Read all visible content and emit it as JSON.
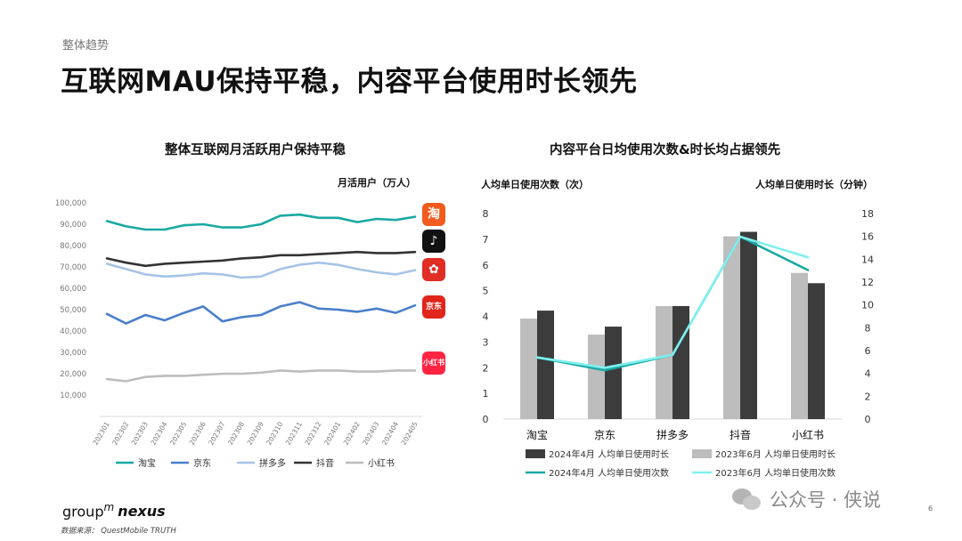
{
  "header": {
    "section": "整体趋势",
    "title": "互联网MAU保持平稳，内容平台使用时长领先"
  },
  "left_chart": {
    "title": "整体互联网月活跃用户保持平稳",
    "unit": "月活用户（万人）"
  },
  "right_chart": {
    "title": "内容平台日均使用次数&时长均占据领先",
    "left_axis_label": "人均单日使用次数（次）",
    "right_axis_label": "人均单日使用时长（分钟）"
  },
  "app_icons": [
    {
      "name": "taobao-icon",
      "glyph": "淘",
      "color": "#f35a1d"
    },
    {
      "name": "douyin-icon",
      "glyph": "♪",
      "color": "#111111"
    },
    {
      "name": "pinduoduo-icon",
      "glyph": "✿",
      "color": "#e02e24"
    },
    {
      "name": "jd-icon",
      "glyph": "京东",
      "color": "#e1251b"
    },
    {
      "name": "xiaohongshu-icon",
      "glyph": "小红书",
      "color": "#ff2442"
    }
  ],
  "footer": {
    "logo_group": "group",
    "logo_m": "m",
    "logo_nexus": "nexus",
    "source": "数据来源：  QuestMobile TRUTH",
    "page_number": "6",
    "watermark": "公众号 · 侠说"
  },
  "chart_data": [
    {
      "type": "line",
      "title": "整体互联网月活跃用户保持平稳",
      "ylabel": "月活用户（万人）",
      "ylim": [
        0,
        100000
      ],
      "yticks": [
        10000,
        20000,
        30000,
        40000,
        50000,
        60000,
        70000,
        80000,
        90000,
        100000
      ],
      "ytick_labels": [
        "10,000",
        "20,000",
        "30,000",
        "40,000",
        "50,000",
        "60,000",
        "70,000",
        "80,000",
        "90,000",
        "100,000"
      ],
      "x": [
        "202301",
        "202302",
        "202303",
        "202304",
        "202305",
        "202306",
        "202307",
        "202308",
        "202309",
        "202310",
        "202311",
        "202312",
        "202401",
        "202402",
        "202403",
        "202404",
        "202405"
      ],
      "legend_position": "bottom",
      "grid": false,
      "series": [
        {
          "name": "淘宝",
          "color": "#1aa9a2",
          "values": [
            91500,
            89000,
            87500,
            87500,
            89500,
            90000,
            88500,
            88500,
            90000,
            94000,
            94500,
            93000,
            93000,
            91000,
            92500,
            92000,
            93500
          ]
        },
        {
          "name": "京东",
          "color": "#4a7fcb",
          "values": [
            48000,
            43500,
            47500,
            45000,
            48500,
            51500,
            44500,
            46500,
            47500,
            51500,
            53500,
            50500,
            50000,
            49000,
            50500,
            48500,
            52000
          ]
        },
        {
          "name": "拼多多",
          "color": "#a7c3e6",
          "values": [
            71500,
            69000,
            66500,
            65500,
            66000,
            67000,
            66500,
            65000,
            65500,
            69000,
            71000,
            72000,
            71000,
            69000,
            67500,
            66500,
            68500
          ]
        },
        {
          "name": "抖音",
          "color": "#333333",
          "values": [
            74000,
            72000,
            70500,
            71500,
            72000,
            72500,
            73000,
            74000,
            74500,
            75500,
            75500,
            76000,
            76500,
            77000,
            76500,
            76500,
            77000
          ]
        },
        {
          "name": "小红书",
          "color": "#bdbdbd",
          "values": [
            17500,
            16500,
            18500,
            19000,
            19000,
            19500,
            20000,
            20000,
            20500,
            21500,
            21000,
            21500,
            21500,
            21000,
            21000,
            21500,
            21500
          ]
        }
      ]
    },
    {
      "type": "bar",
      "title": "内容平台日均使用次数&时长均占据领先",
      "categories": [
        "淘宝",
        "京东",
        "拼多多",
        "抖音",
        "小红书"
      ],
      "ylabel": "人均单日使用次数（次）",
      "ylim": [
        0,
        8
      ],
      "y2label": "人均单日使用时长（分钟）",
      "y2lim": [
        0,
        18
      ],
      "legend_position": "bottom",
      "grid": false,
      "series": [
        {
          "name": "2023年6月 人均单日使用时长",
          "type": "bar",
          "axis": "right",
          "color": "#bdbdbd",
          "values": [
            8.8,
            7.4,
            9.9,
            16.0,
            12.8
          ]
        },
        {
          "name": "2024年4月 人均单日使用时长",
          "type": "bar",
          "axis": "right",
          "color": "#3c3c3c",
          "values": [
            9.5,
            8.1,
            9.9,
            16.4,
            11.9
          ]
        },
        {
          "name": "2024年4月 人均单日使用次数",
          "type": "line",
          "axis": "left",
          "color": "#1aa9a2",
          "values": [
            2.4,
            1.9,
            2.5,
            7.1,
            5.8
          ]
        },
        {
          "name": "2023年6月 人均单日使用次数",
          "type": "line",
          "axis": "left",
          "color": "#7ff0ef",
          "values": [
            2.4,
            2.0,
            2.5,
            7.1,
            6.3
          ]
        }
      ]
    }
  ]
}
